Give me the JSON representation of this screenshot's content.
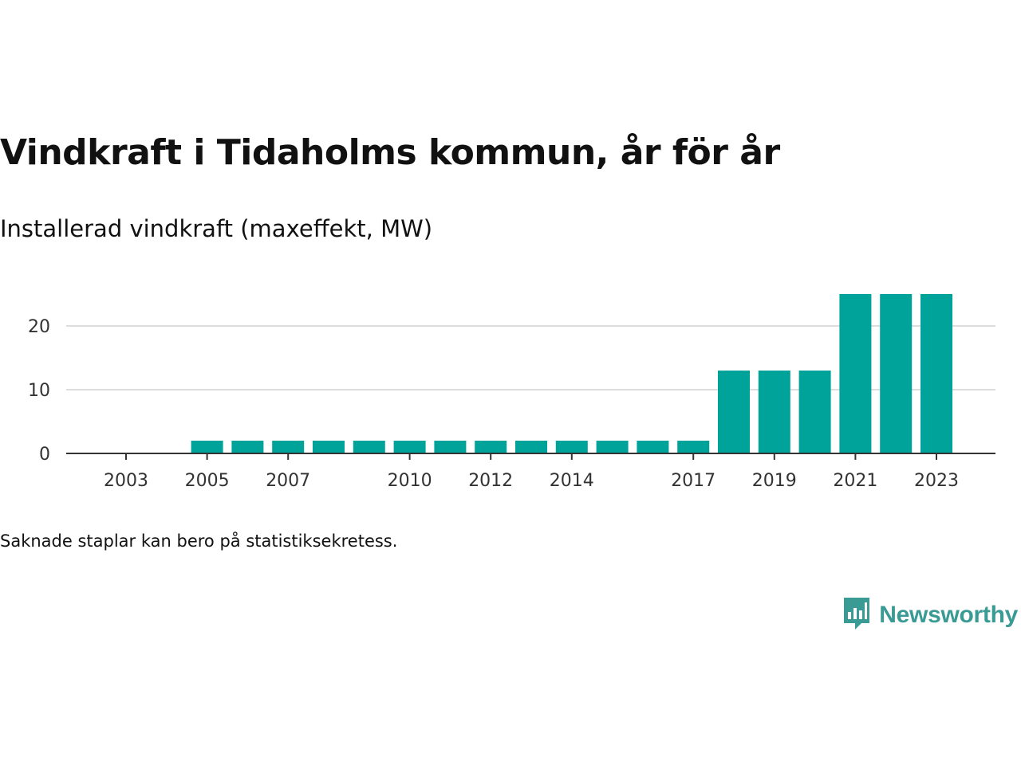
{
  "title": "Vindkraft i Tidaholms kommun, år för år",
  "subtitle": "Installerad vindkraft (maxeffekt, MW)",
  "note": "Saknade staplar kan bero på statistiksekretess.",
  "brand": {
    "name": "Newsworthy",
    "icon": "newsworthy-logo-icon",
    "color": "#3a9a94"
  },
  "colors": {
    "bar": "#00a39a",
    "grid": "#dddddd",
    "axis": "#333333",
    "text": "#333333"
  },
  "chart_data": {
    "type": "bar",
    "categories": [
      2003,
      2004,
      2005,
      2006,
      2007,
      2008,
      2009,
      2010,
      2011,
      2012,
      2013,
      2014,
      2015,
      2016,
      2017,
      2018,
      2019,
      2020,
      2021,
      2022,
      2023
    ],
    "values": [
      0,
      0,
      2,
      2,
      2,
      2,
      2,
      2,
      2,
      2,
      2,
      2,
      2,
      2,
      2,
      13,
      13,
      13,
      25,
      25,
      25
    ],
    "x_tick_labels": [
      "2003",
      "2005",
      "2007",
      "2010",
      "2012",
      "2014",
      "2017",
      "2019",
      "2021",
      "2023"
    ],
    "y_ticks": [
      "0",
      "10",
      "20"
    ],
    "ylim": [
      0,
      25
    ],
    "xlabel": "",
    "ylabel": "",
    "grid": true
  }
}
